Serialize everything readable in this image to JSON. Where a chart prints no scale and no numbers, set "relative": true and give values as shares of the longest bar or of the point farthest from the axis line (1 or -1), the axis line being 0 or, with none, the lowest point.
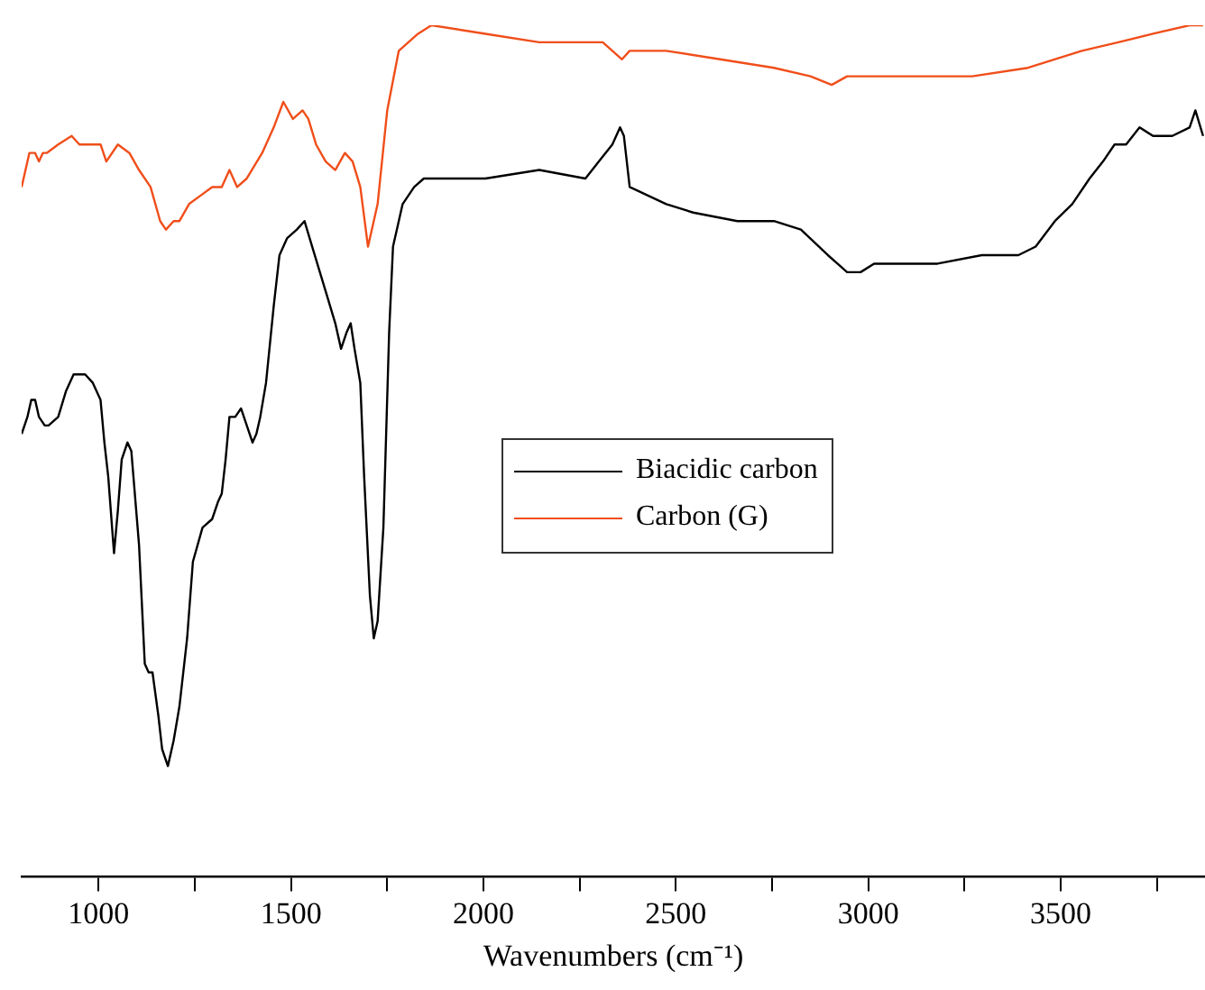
{
  "chart_data": {
    "type": "line",
    "relative": true,
    "xlabel": "Wavenumbers (cm⁻¹)",
    "xlim": [
      800,
      3875
    ],
    "xticks": [
      1000,
      {
        "value": 1250,
        "label": null
      },
      1500,
      {
        "value": 1750,
        "label": null
      },
      2000,
      {
        "value": 2250,
        "label": null
      },
      2500,
      {
        "value": 2750,
        "label": null
      },
      3000,
      {
        "value": 3250,
        "label": null
      },
      3500,
      {
        "value": 3750,
        "label": null
      }
    ],
    "legend": "center",
    "marker": "none",
    "line_style": "solid",
    "series": [
      {
        "name": "Biacidic carbon",
        "color": "#000000",
        "x": [
          800,
          815,
          825,
          835,
          845,
          860,
          870,
          895,
          915,
          935,
          965,
          985,
          1005,
          1015,
          1025,
          1040,
          1050,
          1060,
          1075,
          1085,
          1105,
          1120,
          1130,
          1140,
          1155,
          1165,
          1180,
          1195,
          1210,
          1230,
          1245,
          1270,
          1295,
          1310,
          1320,
          1330,
          1340,
          1355,
          1370,
          1385,
          1400,
          1410,
          1420,
          1435,
          1455,
          1470,
          1490,
          1515,
          1535,
          1555,
          1575,
          1595,
          1615,
          1630,
          1645,
          1655,
          1665,
          1680,
          1690,
          1705,
          1715,
          1725,
          1740,
          1755,
          1765,
          1790,
          1820,
          1845,
          1890,
          2005,
          2145,
          2265,
          2300,
          2335,
          2355,
          2365,
          2380,
          2475,
          2545,
          2660,
          2755,
          2825,
          2895,
          2920,
          2945,
          2980,
          3015,
          3040,
          3180,
          3295,
          3390,
          3435,
          3485,
          3530,
          3575,
          3610,
          3640,
          3670,
          3705,
          3740,
          3790,
          3835,
          3850,
          3870
        ],
        "values": [
          0.52,
          0.54,
          0.56,
          0.56,
          0.54,
          0.53,
          0.53,
          0.54,
          0.57,
          0.59,
          0.59,
          0.58,
          0.56,
          0.51,
          0.47,
          0.38,
          0.43,
          0.49,
          0.51,
          0.5,
          0.39,
          0.25,
          0.24,
          0.24,
          0.19,
          0.15,
          0.13,
          0.16,
          0.2,
          0.28,
          0.37,
          0.41,
          0.42,
          0.44,
          0.45,
          0.49,
          0.54,
          0.54,
          0.55,
          0.53,
          0.51,
          0.52,
          0.54,
          0.58,
          0.67,
          0.73,
          0.75,
          0.76,
          0.77,
          0.74,
          0.71,
          0.68,
          0.65,
          0.62,
          0.64,
          0.65,
          0.62,
          0.58,
          0.47,
          0.33,
          0.28,
          0.3,
          0.41,
          0.64,
          0.74,
          0.79,
          0.81,
          0.82,
          0.82,
          0.82,
          0.83,
          0.82,
          0.84,
          0.86,
          0.88,
          0.87,
          0.81,
          0.79,
          0.78,
          0.77,
          0.77,
          0.76,
          0.73,
          0.72,
          0.71,
          0.71,
          0.72,
          0.72,
          0.72,
          0.73,
          0.73,
          0.74,
          0.77,
          0.79,
          0.82,
          0.84,
          0.86,
          0.86,
          0.88,
          0.87,
          0.87,
          0.88,
          0.9,
          0.87
        ]
      },
      {
        "name": "Carbon (G)",
        "color": "#f04e1a",
        "x": [
          800,
          820,
          835,
          845,
          855,
          865,
          895,
          930,
          950,
          985,
          1005,
          1020,
          1050,
          1080,
          1105,
          1135,
          1160,
          1175,
          1195,
          1210,
          1235,
          1265,
          1295,
          1320,
          1340,
          1360,
          1385,
          1425,
          1455,
          1480,
          1505,
          1530,
          1545,
          1565,
          1590,
          1615,
          1640,
          1660,
          1680,
          1700,
          1725,
          1750,
          1780,
          1830,
          1865,
          2005,
          2145,
          2310,
          2360,
          2380,
          2475,
          2615,
          2755,
          2850,
          2905,
          2945,
          3040,
          3130,
          3270,
          3415,
          3555,
          3650,
          3740,
          3835,
          3870
        ],
        "values": [
          0.81,
          0.85,
          0.85,
          0.84,
          0.85,
          0.85,
          0.86,
          0.87,
          0.86,
          0.86,
          0.86,
          0.84,
          0.86,
          0.85,
          0.83,
          0.81,
          0.77,
          0.76,
          0.77,
          0.77,
          0.79,
          0.8,
          0.81,
          0.81,
          0.83,
          0.81,
          0.82,
          0.85,
          0.88,
          0.91,
          0.89,
          0.9,
          0.89,
          0.86,
          0.84,
          0.83,
          0.85,
          0.84,
          0.81,
          0.74,
          0.79,
          0.9,
          0.97,
          0.99,
          1.0,
          0.99,
          0.98,
          0.98,
          0.96,
          0.97,
          0.97,
          0.96,
          0.95,
          0.94,
          0.93,
          0.94,
          0.94,
          0.94,
          0.94,
          0.95,
          0.97,
          0.98,
          0.99,
          1.0,
          1.0
        ]
      }
    ]
  }
}
